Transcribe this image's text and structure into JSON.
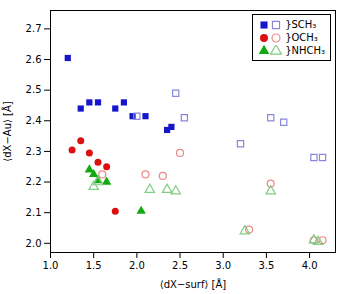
{
  "chart_data": {
    "type": "scatter",
    "xlabel": "⟨dX−surf⟩ [Å]",
    "ylabel": "⟨dX−Au⟩ [Å]",
    "xlim": [
      1.0,
      4.3
    ],
    "ylim": [
      1.97,
      2.76
    ],
    "xticks": [
      {
        "value": 1.0,
        "label": "1.0"
      },
      1.5,
      {
        "value": 2.0,
        "label": "2.0"
      },
      2.5,
      {
        "value": 3.0,
        "label": "3.0"
      },
      3.5,
      {
        "value": 4.0,
        "label": "4.0"
      }
    ],
    "yticks": [
      {
        "value": 2.0,
        "label": "2.0"
      },
      2.1,
      2.2,
      2.3,
      2.4,
      2.5,
      2.6,
      2.7
    ],
    "grid": false,
    "legend": "upper right",
    "series": [
      {
        "name": "}SCH₃",
        "marker": "square",
        "color": "#1515cc",
        "x": [
          1.2,
          1.35,
          1.45,
          1.55,
          1.75,
          1.85,
          1.95,
          2.1,
          2.35,
          2.4
        ],
        "y": [
          2.605,
          2.44,
          2.46,
          2.46,
          2.44,
          2.46,
          2.415,
          2.415,
          2.37,
          2.38
        ]
      },
      {
        "name": "}SCH₃",
        "marker": "square-open",
        "color": "#8888dd",
        "x": [
          2.0,
          2.45,
          2.55,
          3.2,
          3.55,
          3.7,
          4.05,
          4.15
        ],
        "y": [
          2.415,
          2.49,
          2.41,
          2.325,
          2.41,
          2.395,
          2.28,
          2.28
        ]
      },
      {
        "name": "}OCH₃",
        "marker": "circle",
        "color": "#dd1010",
        "x": [
          1.25,
          1.35,
          1.45,
          1.55,
          1.65,
          1.75
        ],
        "y": [
          2.305,
          2.335,
          2.295,
          2.265,
          2.25,
          2.105
        ]
      },
      {
        "name": "}OCH₃",
        "marker": "circle-open",
        "color": "#ee8888",
        "x": [
          1.6,
          2.1,
          2.3,
          2.5,
          3.3,
          3.55,
          4.05,
          4.15
        ],
        "y": [
          2.225,
          2.225,
          2.22,
          2.295,
          2.045,
          2.195,
          2.01,
          2.01
        ]
      },
      {
        "name": "}NHCH₃",
        "marker": "triangle",
        "color": "#10aa10",
        "x": [
          1.45,
          1.5,
          1.55,
          1.65,
          2.05
        ],
        "y": [
          2.24,
          2.225,
          2.205,
          2.2,
          2.105
        ]
      },
      {
        "name": "}NHCH₃",
        "marker": "triangle-open",
        "color": "#80cc80",
        "x": [
          1.5,
          1.55,
          2.15,
          2.35,
          2.45,
          3.25,
          3.55,
          4.05,
          4.1
        ],
        "y": [
          2.185,
          2.2,
          2.175,
          2.175,
          2.17,
          2.04,
          2.17,
          2.01,
          2.005
        ]
      }
    ]
  }
}
